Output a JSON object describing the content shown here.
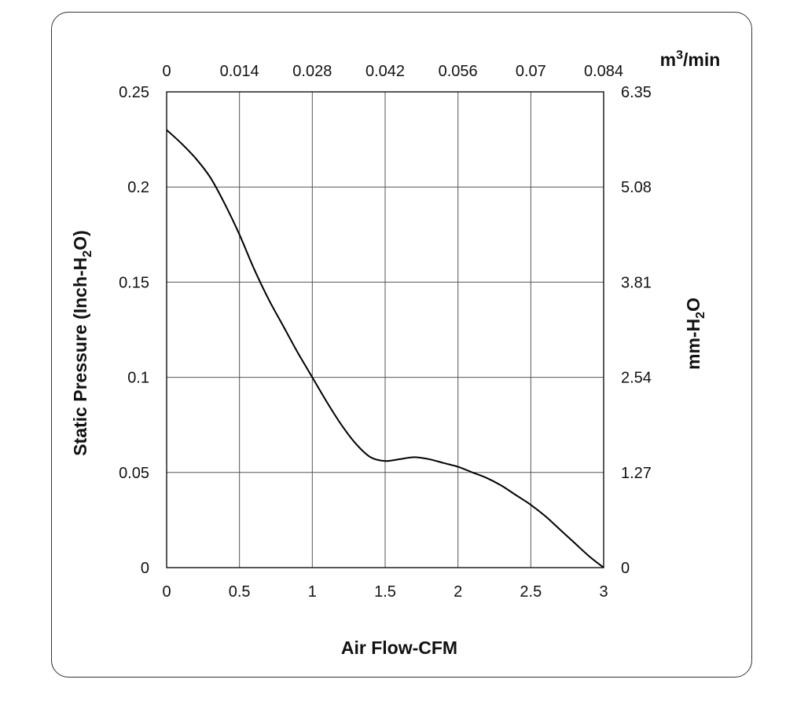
{
  "chart_data": {
    "type": "line",
    "xlabel": "Air Flow-CFM",
    "ylabel": "Static Pressure (Inch-H₂O)",
    "ylabel_main": "Static Pressure (Inch-H",
    "ylabel_sub": "2",
    "ylabel_end": "O)",
    "x2label_main": "m",
    "x2label_sup": "3",
    "x2label_end": "/min",
    "y2label_main": "mm-H",
    "y2label_sub": "2",
    "y2label_end": "O",
    "xlim": [
      0,
      3
    ],
    "ylim": [
      0,
      0.25
    ],
    "x_ticks": [
      "0",
      "0.5",
      "1",
      "1.5",
      "2",
      "2.5",
      "3"
    ],
    "x_tick_values": [
      0,
      0.5,
      1,
      1.5,
      2,
      2.5,
      3
    ],
    "y_ticks": [
      "0",
      "0.05",
      "0.1",
      "0.15",
      "0.2",
      "0.25"
    ],
    "y_tick_values": [
      0,
      0.05,
      0.1,
      0.15,
      0.2,
      0.25
    ],
    "x2_ticks": [
      "0",
      "0.014",
      "0.028",
      "0.042",
      "0.056",
      "0.07",
      "0.084"
    ],
    "y2_ticks": [
      "0",
      "1.27",
      "2.54",
      "3.81",
      "5.08",
      "6.35"
    ],
    "grid": true,
    "line_color": "#000000",
    "series": [
      {
        "x": [
          0,
          0.1,
          0.2,
          0.3,
          0.4,
          0.5,
          0.6,
          0.7,
          0.8,
          0.9,
          1.0,
          1.1,
          1.2,
          1.3,
          1.4,
          1.5,
          1.6,
          1.7,
          1.8,
          1.9,
          2.0,
          2.1,
          2.2,
          2.3,
          2.4,
          2.5,
          2.6,
          2.7,
          2.8,
          2.9,
          3.0
        ],
        "values": [
          0.23,
          0.223,
          0.215,
          0.205,
          0.191,
          0.175,
          0.157,
          0.141,
          0.127,
          0.113,
          0.1,
          0.087,
          0.075,
          0.065,
          0.058,
          0.056,
          0.057,
          0.058,
          0.057,
          0.055,
          0.053,
          0.05,
          0.047,
          0.043,
          0.038,
          0.033,
          0.027,
          0.02,
          0.013,
          0.006,
          0.0
        ]
      }
    ]
  }
}
